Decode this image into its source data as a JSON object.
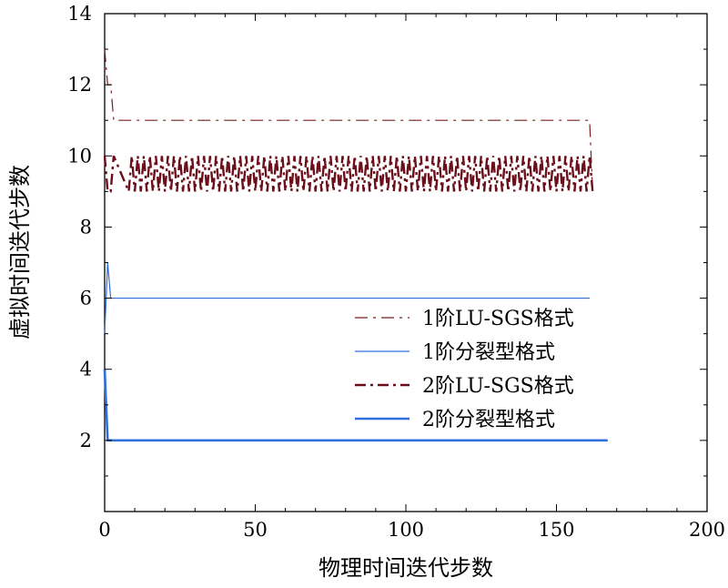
{
  "chart_data": {
    "type": "line",
    "title": "",
    "xlabel": "物理时间迭代步数",
    "ylabel": "虚拟时间迭代步数",
    "xlim": [
      0,
      200
    ],
    "ylim": [
      0,
      14
    ],
    "xticks": [
      0,
      50,
      100,
      150,
      200
    ],
    "yticks": [
      2,
      4,
      6,
      8,
      10,
      12,
      14
    ],
    "grid": false,
    "legend_position": "center-right",
    "series": [
      {
        "name": "1阶LU-SGS格式",
        "color": "#7a1f1f",
        "linestyle": "dashdot",
        "linewidth": 1.2,
        "x": [
          0,
          1,
          2,
          3,
          161,
          162
        ],
        "y": [
          13,
          12,
          12,
          11,
          11,
          9
        ]
      },
      {
        "name": "1阶分裂型格式",
        "color": "#2f6fe0",
        "linestyle": "solid",
        "linewidth": 1.2,
        "x": [
          0,
          1,
          2,
          3,
          161
        ],
        "y": [
          5,
          7,
          6,
          6,
          6
        ]
      },
      {
        "name": "2阶LU-SGS格式",
        "color": "#6b0f1a",
        "linestyle": "dashdot",
        "linewidth": 2.4,
        "pattern": "oscillates between 9 and 10 each physical step from x=8 to x=162",
        "x_start": 8,
        "x_end": 162,
        "y_low": 9,
        "y_high": 10,
        "lead_in_x": [
          0,
          1,
          2,
          3,
          8
        ],
        "lead_in_y": [
          10,
          9,
          9,
          10,
          9
        ]
      },
      {
        "name": "2阶分裂型格式",
        "color": "#2f6fe0",
        "linestyle": "solid",
        "linewidth": 2.6,
        "x": [
          0,
          1,
          2,
          167
        ],
        "y": [
          4,
          2,
          2,
          2
        ]
      }
    ]
  }
}
